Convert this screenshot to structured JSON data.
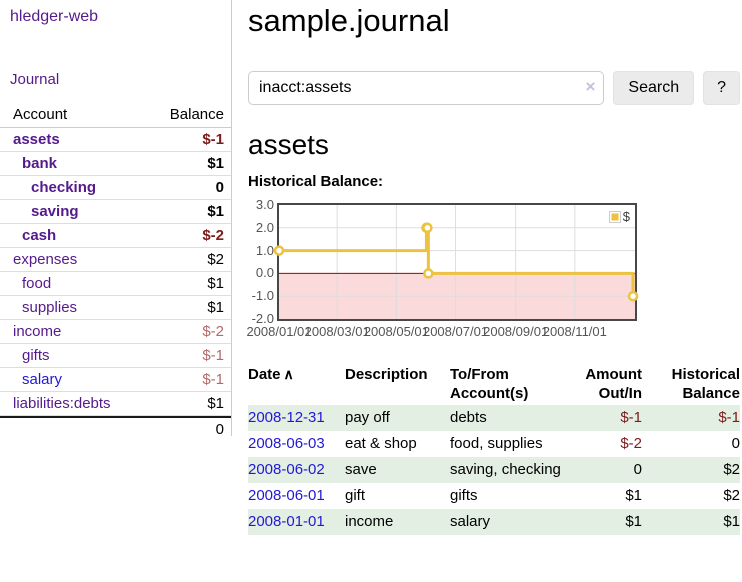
{
  "colors": {
    "purple_link": "#551a8b",
    "blue_link": "#2118d7",
    "negative_dark": "#7d1a1a",
    "negative_light": "#b36a6a",
    "row_shade_green": "#e3efe3"
  },
  "sidebar": {
    "brand": "hledger-web",
    "nav_journal": "Journal",
    "col_account": "Account",
    "col_balance": "Balance",
    "accounts": [
      {
        "name": "assets",
        "indent": 1,
        "bold": true,
        "balance": "$-1",
        "balance_class": "neg-dark"
      },
      {
        "name": "bank",
        "indent": 2,
        "bold": true,
        "balance": "$1",
        "balance_class": ""
      },
      {
        "name": "checking",
        "indent": 3,
        "bold": true,
        "balance": "0",
        "balance_class": ""
      },
      {
        "name": "saving",
        "indent": 3,
        "bold": true,
        "balance": "$1",
        "balance_class": ""
      },
      {
        "name": "cash",
        "indent": 2,
        "bold": true,
        "balance": "$-2",
        "balance_class": "neg-dark"
      },
      {
        "name": "expenses",
        "indent": 1,
        "bold": false,
        "balance": "$2",
        "balance_class": ""
      },
      {
        "name": "food",
        "indent": 2,
        "bold": false,
        "balance": "$1",
        "balance_class": ""
      },
      {
        "name": "supplies",
        "indent": 2,
        "bold": false,
        "balance": "$1",
        "balance_class": ""
      },
      {
        "name": "income",
        "indent": 1,
        "bold": false,
        "balance": "$-2",
        "balance_class": "neg-light"
      },
      {
        "name": "gifts",
        "indent": 2,
        "bold": false,
        "balance": "$-1",
        "balance_class": "neg-light"
      },
      {
        "name": "salary",
        "indent": 2,
        "bold": false,
        "balance": "$-1",
        "balance_class": "neg-light",
        "blue": true
      },
      {
        "name": "liabilities:debts",
        "indent": 1,
        "bold": false,
        "balance": "$1",
        "balance_class": ""
      }
    ],
    "total": "0"
  },
  "main": {
    "title": "sample.journal",
    "search": {
      "value": "inacct:assets",
      "clear": "×",
      "button": "Search",
      "help": "?"
    },
    "heading": "assets",
    "register": {
      "headers": {
        "date": "Date",
        "sort_arrow": "∧",
        "description": "Description",
        "accounts": "To/From Account(s)",
        "amount": "Amount Out/In",
        "balance": "Historical Balance"
      },
      "rows": [
        {
          "date": "2008-12-31",
          "description": "pay off",
          "accounts": "debts",
          "amount": "$-1",
          "amount_negative": true,
          "balance": "$-1",
          "balance_negative": true,
          "shaded": true
        },
        {
          "date": "2008-06-03",
          "description": "eat & shop",
          "accounts": "food, supplies",
          "amount": "$-2",
          "amount_negative": true,
          "balance": "0",
          "balance_negative": false,
          "shaded": false
        },
        {
          "date": "2008-06-02",
          "description": "save",
          "accounts": "saving, checking",
          "amount": "0",
          "amount_negative": false,
          "balance": "$2",
          "balance_negative": false,
          "shaded": true
        },
        {
          "date": "2008-06-01",
          "description": "gift",
          "accounts": "gifts",
          "amount": "$1",
          "amount_negative": false,
          "balance": "$2",
          "balance_negative": false,
          "shaded": false
        },
        {
          "date": "2008-01-01",
          "description": "income",
          "accounts": "salary",
          "amount": "$1",
          "amount_negative": false,
          "balance": "$1",
          "balance_negative": false,
          "shaded": true
        }
      ]
    }
  },
  "chart_data": {
    "type": "line",
    "subtype": "step",
    "title": "Historical Balance:",
    "x_range": [
      "2008-01-01",
      "2008-12-31"
    ],
    "ylim": [
      -2,
      3
    ],
    "y_tick_values": [
      3,
      2,
      1,
      0,
      -1,
      -2
    ],
    "y_tick_labels": [
      "3.0",
      "2.0",
      "1.0",
      "0.0",
      "-1.0",
      "-2.0"
    ],
    "x_tick_dates": [
      "2008-01-01",
      "2008-03-01",
      "2008-05-01",
      "2008-07-01",
      "2008-09-01",
      "2008-11-01"
    ],
    "x_tick_labels": [
      "2008/01/01",
      "2008/03/01",
      "2008/05/01",
      "2008/07/01",
      "2008/09/01",
      "2008/11/01"
    ],
    "legend": {
      "label": "$",
      "position": "top-right"
    },
    "grid": true,
    "series": [
      {
        "name": "$",
        "color": "#EDC240",
        "points": [
          {
            "date": "2008-01-01",
            "value": 1
          },
          {
            "date": "2008-06-01",
            "value": 2
          },
          {
            "date": "2008-06-02",
            "value": 2
          },
          {
            "date": "2008-06-03",
            "value": 0
          },
          {
            "date": "2008-12-31",
            "value": -1
          }
        ]
      }
    ],
    "colors": {
      "negative_region": "#fadada",
      "zero_line": "#aa0000",
      "grid": "#dddddd",
      "border": "#474747"
    }
  }
}
